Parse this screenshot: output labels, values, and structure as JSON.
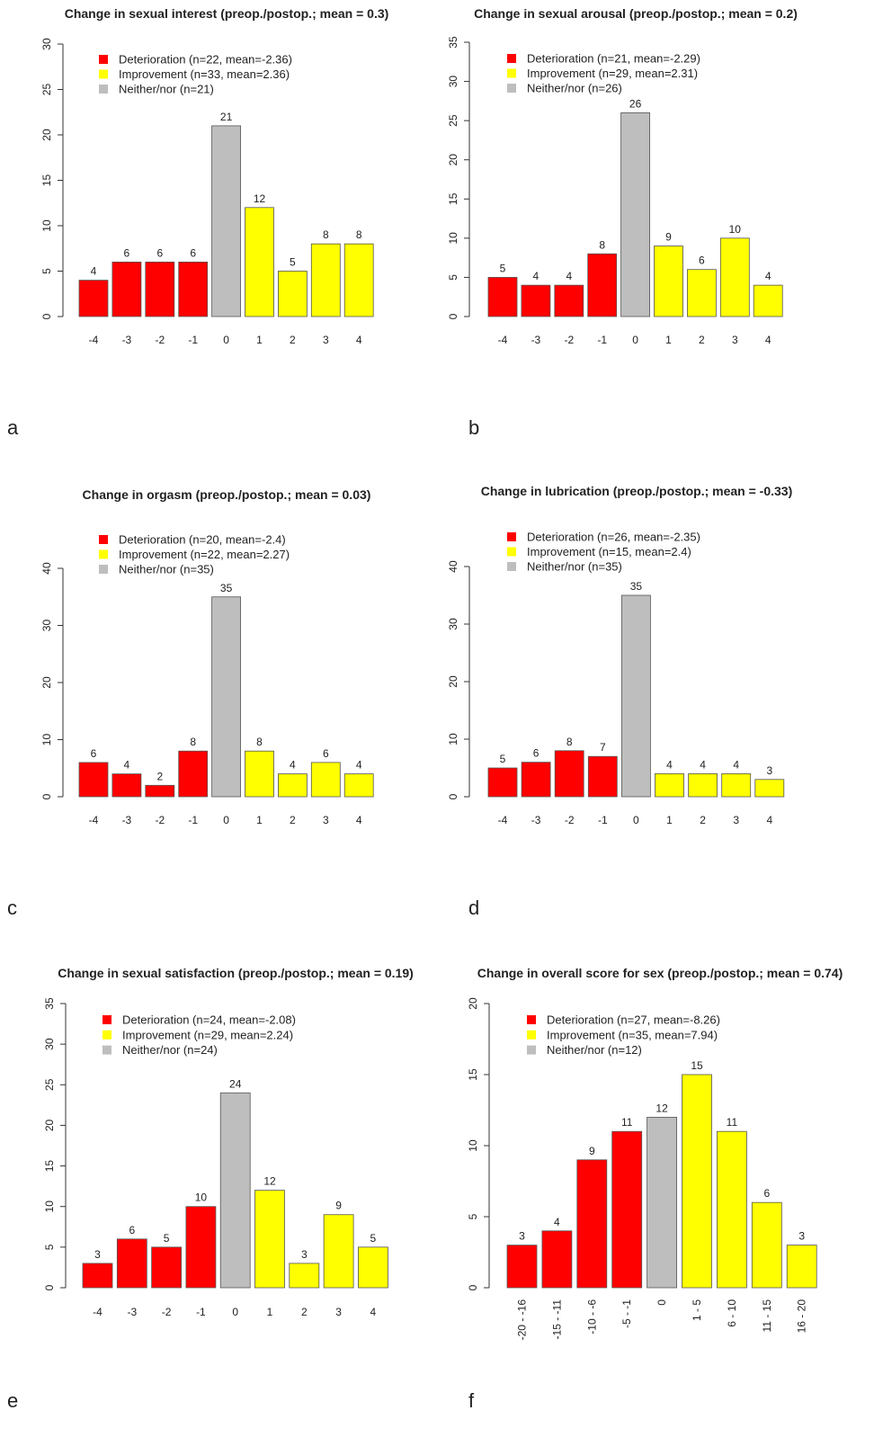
{
  "colors": {
    "deterioration": "#FF0000",
    "improvement": "#FFFF00",
    "neither": "#BEBEBE",
    "bar_border": "#555555"
  },
  "chart_data": [
    {
      "panel": "a",
      "type": "bar",
      "title": "Change in sexual interest (preop./postop.; mean = 0.3)",
      "xlabel": "",
      "ylabel": "",
      "categories": [
        "-4",
        "-3",
        "-2",
        "-1",
        "0",
        "1",
        "2",
        "3",
        "4"
      ],
      "values": [
        4,
        6,
        6,
        6,
        21,
        12,
        5,
        8,
        8
      ],
      "groups": [
        "deterioration",
        "deterioration",
        "deterioration",
        "deterioration",
        "neither",
        "improvement",
        "improvement",
        "improvement",
        "improvement"
      ],
      "ylim": [
        0,
        30
      ],
      "yticks": [
        0,
        5,
        10,
        15,
        20,
        25,
        30
      ],
      "legend": [
        "Deterioration (n=22, mean=-2.36)",
        "Improvement (n=33, mean=2.36)",
        "Neither/nor (n=21)"
      ],
      "legend_position": "top-left",
      "grid": false
    },
    {
      "panel": "b",
      "type": "bar",
      "title": "Change in sexual arousal (preop./postop.; mean = 0.2)",
      "xlabel": "",
      "ylabel": "",
      "categories": [
        "-4",
        "-3",
        "-2",
        "-1",
        "0",
        "1",
        "2",
        "3",
        "4"
      ],
      "values": [
        5,
        4,
        4,
        8,
        26,
        9,
        6,
        10,
        4
      ],
      "groups": [
        "deterioration",
        "deterioration",
        "deterioration",
        "deterioration",
        "neither",
        "improvement",
        "improvement",
        "improvement",
        "improvement"
      ],
      "ylim": [
        0,
        35
      ],
      "yticks": [
        0,
        5,
        10,
        15,
        20,
        25,
        30,
        35
      ],
      "legend": [
        "Deterioration (n=21, mean=-2.29)",
        "Improvement (n=29, mean=2.31)",
        "Neither/nor (n=26)"
      ],
      "legend_position": "top-left",
      "grid": false
    },
    {
      "panel": "c",
      "type": "bar",
      "title": "Change in orgasm (preop./postop.; mean = 0.03)",
      "xlabel": "",
      "ylabel": "",
      "categories": [
        "-4",
        "-3",
        "-2",
        "-1",
        "0",
        "1",
        "2",
        "3",
        "4"
      ],
      "values": [
        6,
        4,
        2,
        8,
        35,
        8,
        4,
        6,
        4
      ],
      "groups": [
        "deterioration",
        "deterioration",
        "deterioration",
        "deterioration",
        "neither",
        "improvement",
        "improvement",
        "improvement",
        "improvement"
      ],
      "ylim": [
        0,
        40
      ],
      "yticks": [
        0,
        10,
        20,
        30,
        40
      ],
      "legend": [
        "Deterioration (n=20, mean=-2.4)",
        "Improvement (n=22, mean=2.27)",
        "Neither/nor (n=35)"
      ],
      "legend_position": "top-left",
      "grid": false
    },
    {
      "panel": "d",
      "type": "bar",
      "title": "Change in lubrication (preop./postop.; mean = -0.33)",
      "xlabel": "",
      "ylabel": "",
      "categories": [
        "-4",
        "-3",
        "-2",
        "-1",
        "0",
        "1",
        "2",
        "3",
        "4"
      ],
      "values": [
        5,
        6,
        8,
        7,
        35,
        4,
        4,
        4,
        3
      ],
      "groups": [
        "deterioration",
        "deterioration",
        "deterioration",
        "deterioration",
        "neither",
        "improvement",
        "improvement",
        "improvement",
        "improvement"
      ],
      "ylim": [
        0,
        40
      ],
      "yticks": [
        0,
        10,
        20,
        30,
        40
      ],
      "legend": [
        "Deterioration (n=26, mean=-2.35)",
        "Improvement (n=15, mean=2.4)",
        "Neither/nor (n=35)"
      ],
      "legend_position": "top-left",
      "grid": false
    },
    {
      "panel": "e",
      "type": "bar",
      "title": "Change in sexual satisfaction (preop./postop.; mean = 0.19)",
      "xlabel": "",
      "ylabel": "",
      "categories": [
        "-4",
        "-3",
        "-2",
        "-1",
        "0",
        "1",
        "2",
        "3",
        "4"
      ],
      "values": [
        3,
        6,
        5,
        10,
        24,
        12,
        3,
        9,
        5
      ],
      "groups": [
        "deterioration",
        "deterioration",
        "deterioration",
        "deterioration",
        "neither",
        "improvement",
        "improvement",
        "improvement",
        "improvement"
      ],
      "ylim": [
        0,
        35
      ],
      "yticks": [
        0,
        5,
        10,
        15,
        20,
        25,
        30,
        35
      ],
      "legend": [
        "Deterioration (n=24, mean=-2.08)",
        "Improvement (n=29, mean=2.24)",
        "Neither/nor (n=24)"
      ],
      "legend_position": "top-left",
      "grid": false
    },
    {
      "panel": "f",
      "type": "bar",
      "title": "Change in overall score for sex (preop./postop.; mean = 0.74)",
      "xlabel": "",
      "ylabel": "",
      "categories": [
        "-20 - -16",
        "-15 - -11",
        "-10 - -6",
        "-5 - -1",
        "0",
        "1 - 5",
        "6 - 10",
        "11 - 15",
        "16 - 20"
      ],
      "values": [
        3,
        4,
        9,
        11,
        12,
        15,
        11,
        6,
        3
      ],
      "groups": [
        "deterioration",
        "deterioration",
        "deterioration",
        "deterioration",
        "neither",
        "improvement",
        "improvement",
        "improvement",
        "improvement"
      ],
      "ylim": [
        0,
        20
      ],
      "yticks": [
        0,
        5,
        10,
        15,
        20
      ],
      "rotated_xticks": true,
      "legend": [
        "Deterioration (n=27, mean=-8.26)",
        "Improvement (n=35, mean=7.94)",
        "Neither/nor (n=12)"
      ],
      "legend_position": "top-left",
      "grid": false
    }
  ]
}
